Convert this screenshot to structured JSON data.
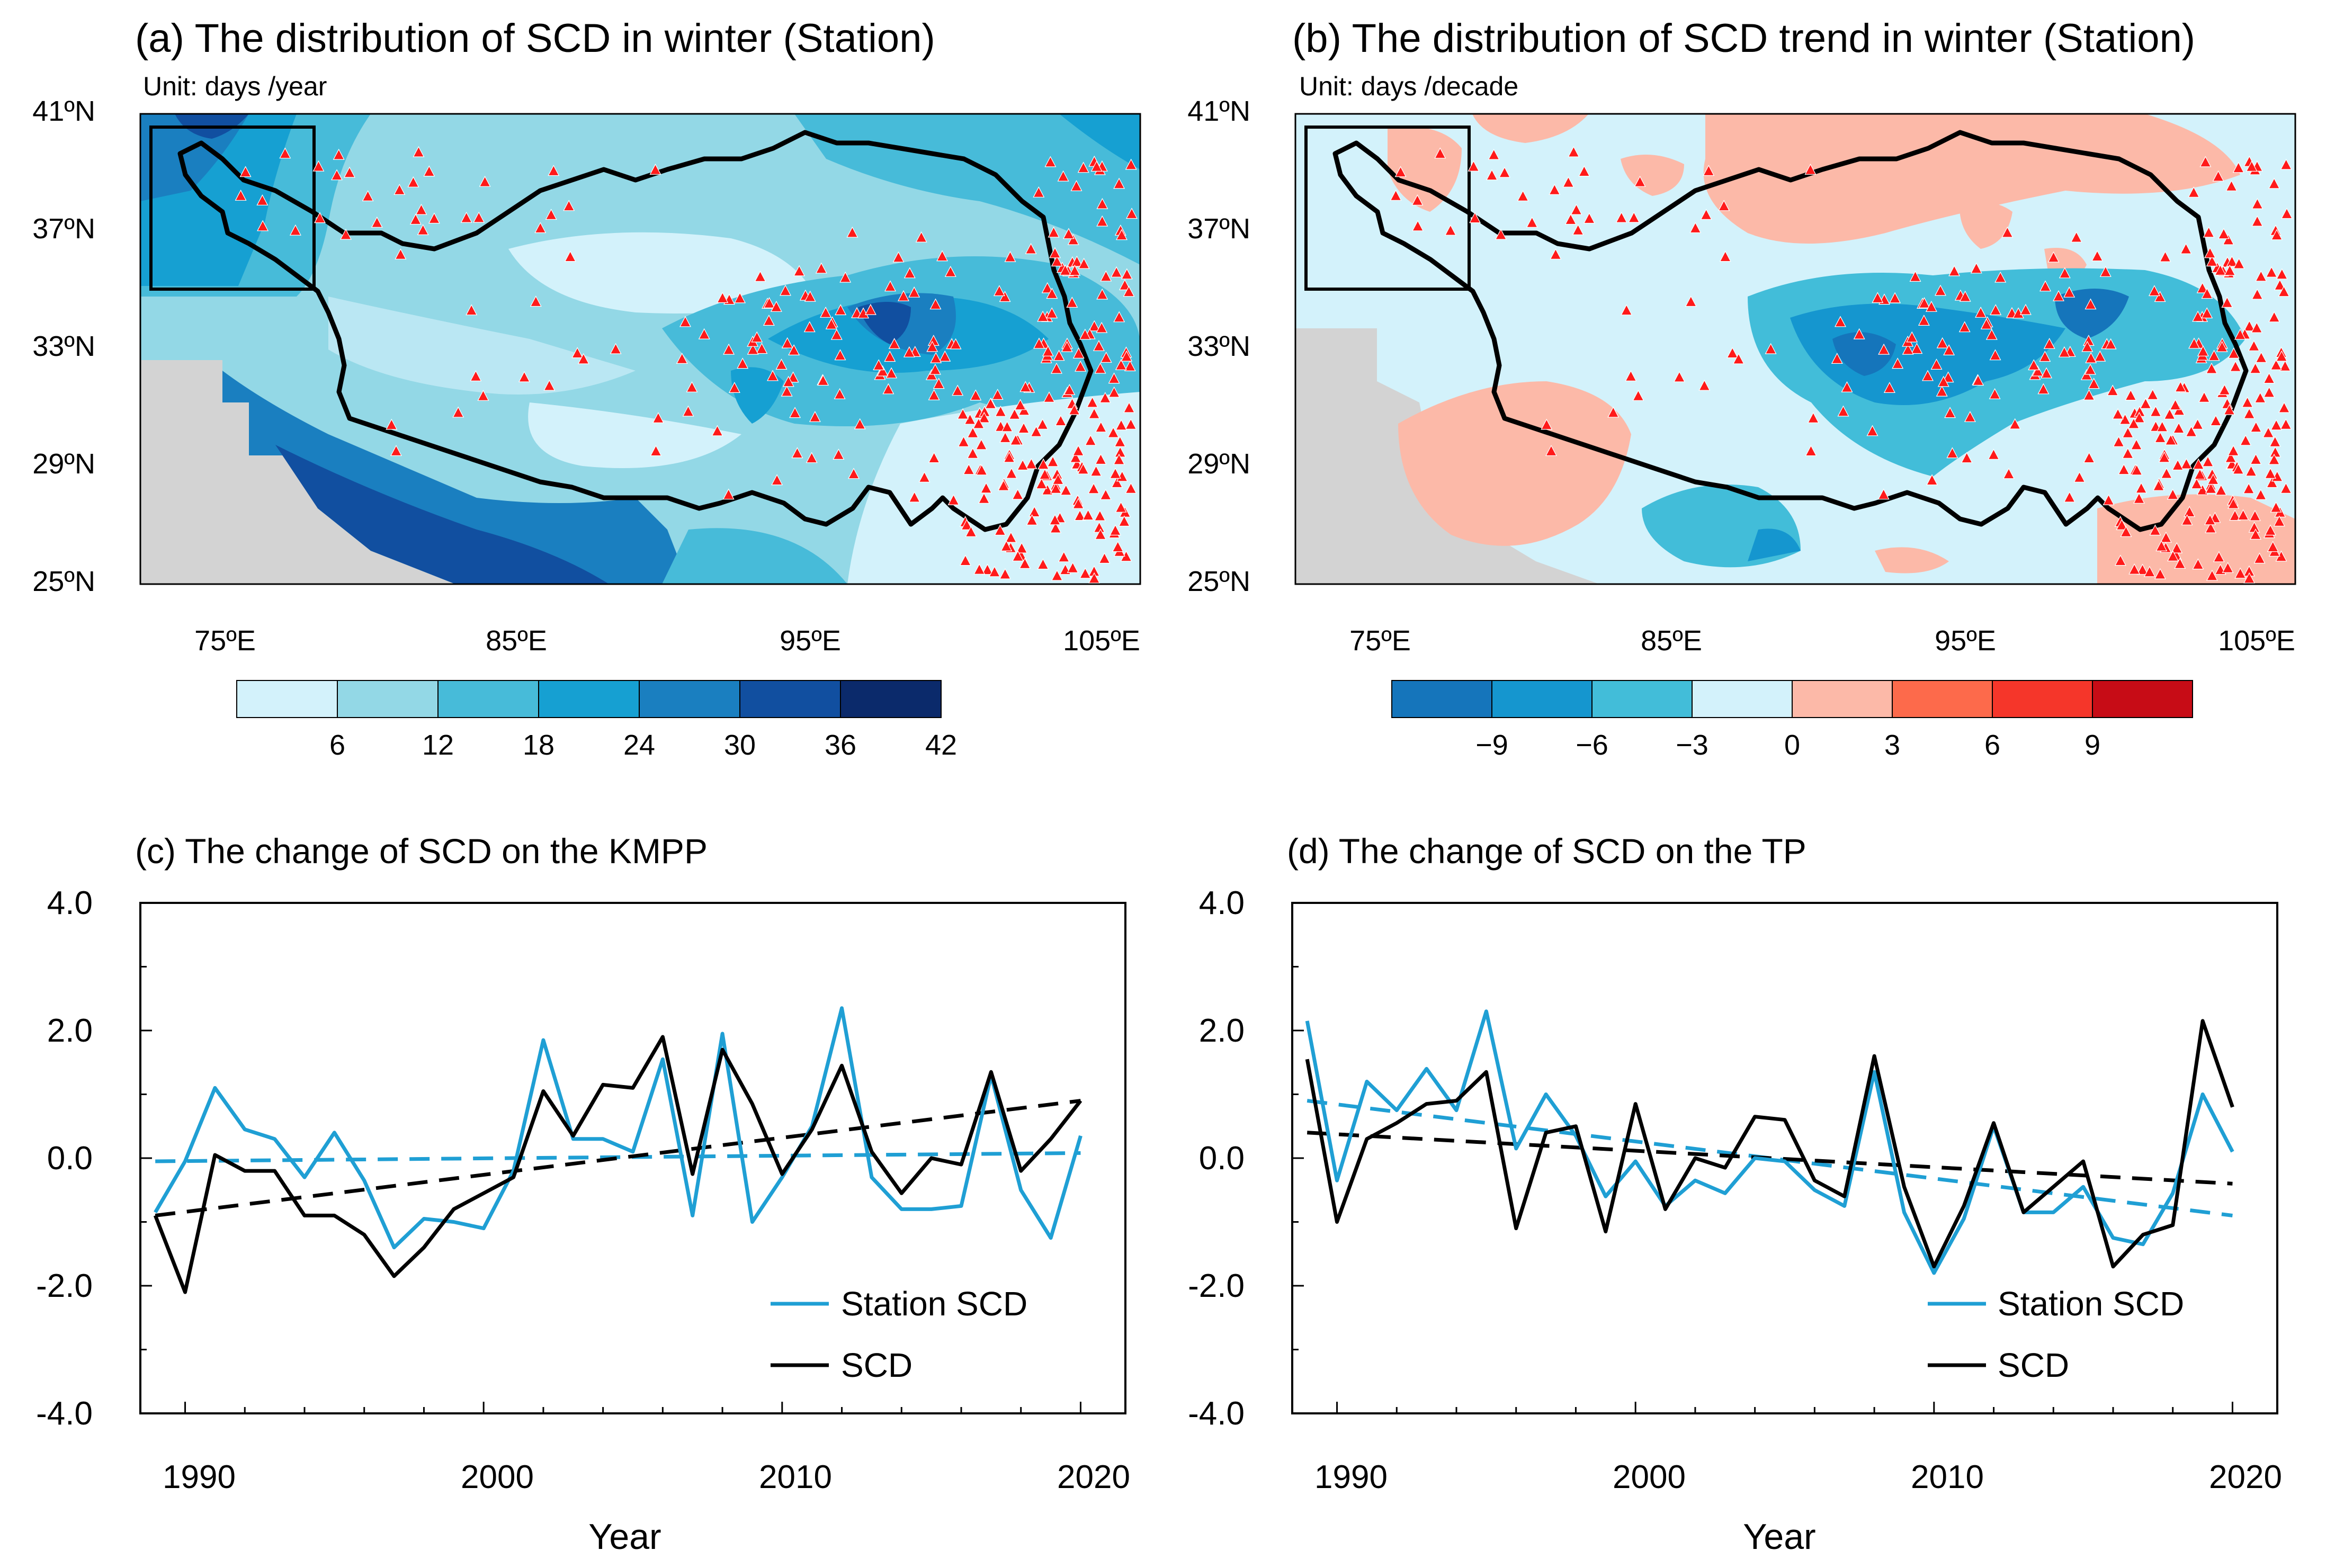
{
  "chart_data": [
    {
      "panel": "a",
      "type": "heatmap",
      "title": "(a) The distribution of SCD in winter (Station)",
      "unit_label": "Unit: days /year",
      "lat_ticks": [
        "25ºN",
        "29ºN",
        "33ºN",
        "37ºN",
        "41ºN"
      ],
      "lon_ticks": [
        "75ºE",
        "85ºE",
        "95ºE",
        "105ºE"
      ],
      "lat_range": [
        25,
        41
      ],
      "lon_range": [
        72,
        106
      ],
      "colorbar": {
        "labels": [
          "6",
          "12",
          "18",
          "24",
          "30",
          "36",
          "42"
        ],
        "colors": [
          "#d3f2fb",
          "#93d8e6",
          "#47bbd9",
          "#16a0d2",
          "#1a7fc0",
          "#114fa0",
          "#0b2a6b"
        ]
      },
      "markers": "red triangles = stations"
    },
    {
      "panel": "b",
      "type": "heatmap",
      "title": "(b) The distribution of SCD trend in winter (Station)",
      "unit_label": "Unit: days /decade",
      "lat_ticks": [
        "25ºN",
        "29ºN",
        "33ºN",
        "37ºN",
        "41ºN"
      ],
      "lon_ticks": [
        "75ºE",
        "85ºE",
        "95ºE",
        "105ºE"
      ],
      "lat_range": [
        25,
        41
      ],
      "lon_range": [
        72,
        106
      ],
      "colorbar": {
        "labels": [
          "−9",
          "−6",
          "−3",
          "0",
          "3",
          "6",
          "9"
        ],
        "colors": [
          "#1575bb",
          "#1596cf",
          "#42bdd9",
          "#d3f2fb",
          "#fcb9a8",
          "#fd6a4b",
          "#f5362a",
          "#c70c16"
        ]
      },
      "markers": "red triangles = stations"
    },
    {
      "panel": "c",
      "type": "line",
      "title": "(c) The change of SCD on the KMPP",
      "xlabel": "Year",
      "ylabel": "",
      "xlim": [
        1988.5,
        2021.5
      ],
      "ylim": [
        -4,
        4
      ],
      "x_ticks": [
        "1990",
        "2000",
        "2010",
        "2020"
      ],
      "y_ticks": [
        "-4.0",
        "-2.0",
        "0.0",
        "2.0",
        "4.0"
      ],
      "x": [
        1989,
        1990,
        1991,
        1992,
        1993,
        1994,
        1995,
        1996,
        1997,
        1998,
        1999,
        2000,
        2001,
        2002,
        2003,
        2004,
        2005,
        2006,
        2007,
        2008,
        2009,
        2010,
        2011,
        2012,
        2013,
        2014,
        2015,
        2016,
        2017,
        2018,
        2019,
        2020
      ],
      "series": [
        {
          "name": "Station SCD",
          "color": "#1f9fd4",
          "values": [
            -0.85,
            -0.05,
            1.1,
            0.45,
            0.3,
            -0.3,
            0.4,
            -0.35,
            -1.4,
            -0.95,
            -1.0,
            -1.1,
            -0.2,
            1.85,
            0.3,
            0.3,
            0.1,
            1.55,
            -0.9,
            1.95,
            -1.0,
            -0.3,
            0.5,
            2.35,
            -0.3,
            -0.8,
            -0.8,
            -0.75,
            1.3,
            -0.5,
            -1.25,
            0.35
          ]
        },
        {
          "name": "SCD",
          "color": "#000000",
          "values": [
            -0.9,
            -2.1,
            0.05,
            -0.2,
            -0.2,
            -0.9,
            -0.9,
            -1.2,
            -1.85,
            -1.4,
            -0.8,
            -0.55,
            -0.3,
            1.05,
            0.35,
            1.15,
            1.1,
            1.9,
            -0.25,
            1.7,
            0.85,
            -0.25,
            0.45,
            1.45,
            0.1,
            -0.55,
            0.0,
            -0.1,
            1.35,
            -0.2,
            0.3,
            0.9
          ]
        }
      ],
      "trends": [
        {
          "name": "Station SCD trend",
          "color": "#1f9fd4",
          "start": [
            1989,
            -0.05
          ],
          "end": [
            2020,
            0.08
          ]
        },
        {
          "name": "SCD trend",
          "color": "#000000",
          "start": [
            1989,
            -0.9
          ],
          "end": [
            2020,
            0.9
          ]
        }
      ],
      "legend": "bottom-right"
    },
    {
      "panel": "d",
      "type": "line",
      "title": "(d) The change of SCD on the TP",
      "xlabel": "Year",
      "ylabel": "",
      "xlim": [
        1988.5,
        2021.5
      ],
      "ylim": [
        -4,
        4
      ],
      "x_ticks": [
        "1990",
        "2000",
        "2010",
        "2020"
      ],
      "y_ticks": [
        "-4.0",
        "-2.0",
        "0.0",
        "2.0",
        "4.0"
      ],
      "x": [
        1989,
        1990,
        1991,
        1992,
        1993,
        1994,
        1995,
        1996,
        1997,
        1998,
        1999,
        2000,
        2001,
        2002,
        2003,
        2004,
        2005,
        2006,
        2007,
        2008,
        2009,
        2010,
        2011,
        2012,
        2013,
        2014,
        2015,
        2016,
        2017,
        2018,
        2019,
        2020
      ],
      "series": [
        {
          "name": "Station SCD",
          "color": "#1f9fd4",
          "values": [
            2.15,
            -0.35,
            1.2,
            0.75,
            1.4,
            0.75,
            2.3,
            0.15,
            1.0,
            0.35,
            -0.6,
            -0.05,
            -0.75,
            -0.35,
            -0.55,
            0.0,
            -0.05,
            -0.5,
            -0.75,
            1.35,
            -0.85,
            -1.8,
            -0.95,
            0.5,
            -0.85,
            -0.85,
            -0.45,
            -1.25,
            -1.35,
            -0.55,
            1.0,
            0.1
          ]
        },
        {
          "name": "SCD",
          "color": "#000000",
          "values": [
            1.55,
            -1.0,
            0.3,
            0.55,
            0.85,
            0.9,
            1.35,
            -1.1,
            0.4,
            0.5,
            -1.15,
            0.85,
            -0.8,
            0.0,
            -0.15,
            0.65,
            0.6,
            -0.35,
            -0.6,
            1.6,
            -0.45,
            -1.7,
            -0.75,
            0.55,
            -0.85,
            -0.45,
            -0.05,
            -1.7,
            -1.2,
            -1.05,
            2.15,
            0.8
          ]
        }
      ],
      "trends": [
        {
          "name": "Station SCD trend",
          "color": "#1f9fd4",
          "start": [
            1989,
            0.9
          ],
          "end": [
            2020,
            -0.9
          ]
        },
        {
          "name": "SCD trend",
          "color": "#000000",
          "start": [
            1989,
            0.4
          ],
          "end": [
            2020,
            -0.4
          ]
        }
      ],
      "legend": "bottom-right"
    }
  ]
}
